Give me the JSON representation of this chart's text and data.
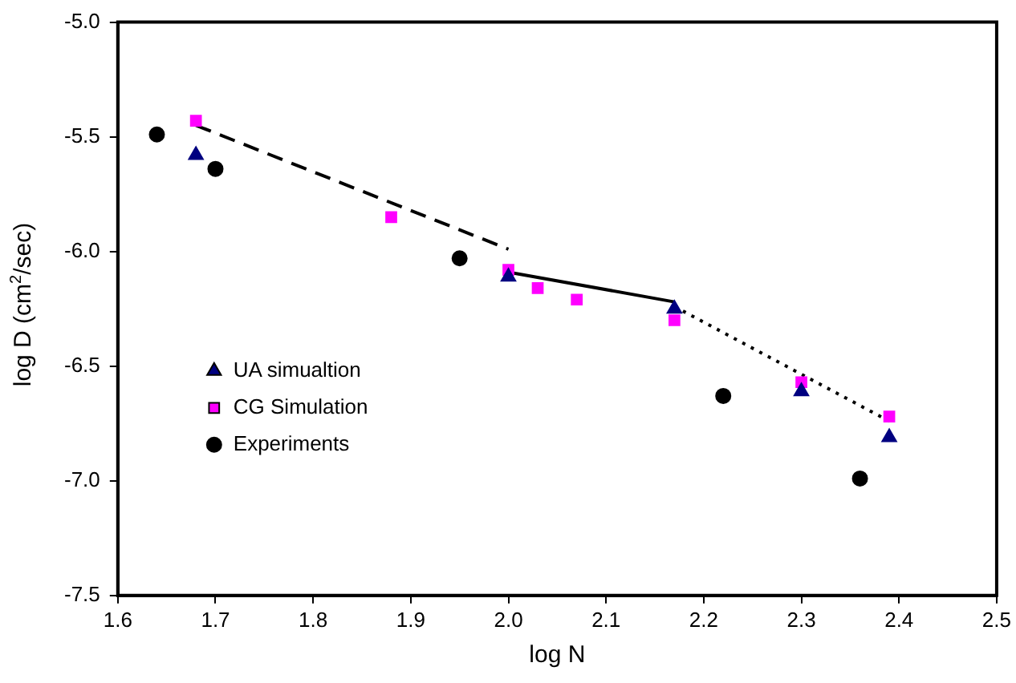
{
  "chart_data": {
    "type": "scatter",
    "xlabel": "log N",
    "ylabel": "log D (cm$^{2}$/sec)",
    "xlim": [
      1.6,
      2.5
    ],
    "xticks": [
      {
        "value": 1.6,
        "label": "1.6"
      },
      {
        "value": 1.7,
        "label": "1.7"
      },
      {
        "value": 1.8,
        "label": "1.8"
      },
      {
        "value": 1.9,
        "label": "1.9"
      },
      {
        "value": 2.0,
        "label": "2.0"
      },
      {
        "value": 2.1,
        "label": "2.1"
      },
      {
        "value": 2.2,
        "label": "2.2"
      },
      {
        "value": 2.3,
        "label": "2.3"
      },
      {
        "value": 2.4,
        "label": "2.4"
      },
      {
        "value": 2.5,
        "label": "2.5"
      }
    ],
    "ylim": [
      -7.5,
      -5.0
    ],
    "yticks": [
      {
        "value": -7.5,
        "label": "-7.5"
      },
      {
        "value": -7.0,
        "label": "-7.0"
      },
      {
        "value": -6.5,
        "label": "-6.5"
      },
      {
        "value": -6.0,
        "label": "-6.0"
      },
      {
        "value": -5.5,
        "label": "-5.5"
      },
      {
        "value": -5.0,
        "label": "-5.0"
      }
    ],
    "grid": false,
    "legend": "bottom left",
    "series": [
      {
        "name": "UA simualtion",
        "color": "#000080",
        "marker": "triangle",
        "x": [
          1.68,
          2.0,
          2.17,
          2.3,
          2.39
        ],
        "values": [
          -5.58,
          -6.11,
          -6.25,
          -6.61,
          -6.81
        ]
      },
      {
        "name": "CG Simulation",
        "color": "#ff00ff",
        "marker": "square",
        "x": [
          1.68,
          1.88,
          2.0,
          2.03,
          2.07,
          2.17,
          2.3,
          2.39
        ],
        "values": [
          -5.43,
          -5.85,
          -6.08,
          -6.16,
          -6.21,
          -6.3,
          -6.57,
          -6.72
        ]
      },
      {
        "name": "Experiments",
        "color": "#000000",
        "marker": "circle",
        "x": [
          1.64,
          1.7,
          1.95,
          2.22,
          2.36
        ],
        "values": [
          -5.49,
          -5.64,
          -6.03,
          -6.63,
          -6.99
        ]
      },
      {
        "type": "line",
        "color": "#000000",
        "line_style": "dashed",
        "marker": "none",
        "x": [
          1.68,
          2.0
        ],
        "values": [
          -5.45,
          -5.99
        ]
      },
      {
        "type": "line",
        "color": "#000000",
        "line_style": "solid",
        "marker": "none",
        "x": [
          2.0,
          2.17
        ],
        "values": [
          -6.09,
          -6.22
        ]
      },
      {
        "type": "line",
        "color": "#000000",
        "line_style": "dotted",
        "marker": "none",
        "x": [
          2.17,
          2.39
        ],
        "values": [
          -6.24,
          -6.74
        ]
      }
    ]
  }
}
